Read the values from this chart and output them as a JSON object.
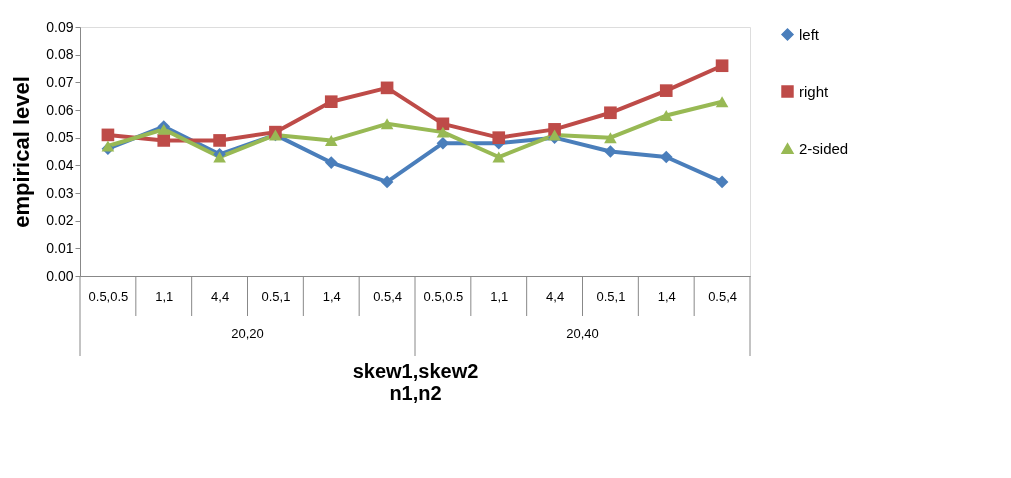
{
  "chart_data": {
    "type": "line",
    "xlabel": "skew1,skew2\nn1,n2",
    "ylabel": "empirical level",
    "categories": [
      "0.5,0.5",
      "1,1",
      "4,4",
      "0.5,1",
      "1,4",
      "0.5,4",
      "0.5,0.5",
      "1,1",
      "4,4",
      "0.5,1",
      "1,4",
      "0.5,4"
    ],
    "annotations": [
      "20,20",
      "20,40"
    ],
    "series": [
      {
        "name": "left",
        "color": "#4a7ebb",
        "marker": "diamond",
        "values": [
          0.046,
          0.054,
          0.044,
          0.051,
          0.041,
          0.034,
          0.048,
          0.048,
          0.05,
          0.045,
          0.043,
          0.034
        ]
      },
      {
        "name": "right",
        "color": "#be4b48",
        "marker": "square",
        "values": [
          0.051,
          0.049,
          0.049,
          0.052,
          0.063,
          0.068,
          0.055,
          0.05,
          0.053,
          0.059,
          0.067,
          0.076
        ]
      },
      {
        "name": "2-sided",
        "color": "#98b954",
        "marker": "triangle",
        "values": [
          0.047,
          0.053,
          0.043,
          0.051,
          0.049,
          0.055,
          0.052,
          0.043,
          0.051,
          0.05,
          0.058,
          0.063
        ]
      }
    ],
    "ylim": [
      0,
      0.09
    ],
    "yticks": [
      {
        "value": 0,
        "label": "0.00"
      },
      0.01,
      0.02,
      0.03,
      0.04,
      0.05,
      0.06,
      0.07,
      0.08,
      0.09
    ],
    "grid": false,
    "legend": "right",
    "line_style": "solid"
  }
}
